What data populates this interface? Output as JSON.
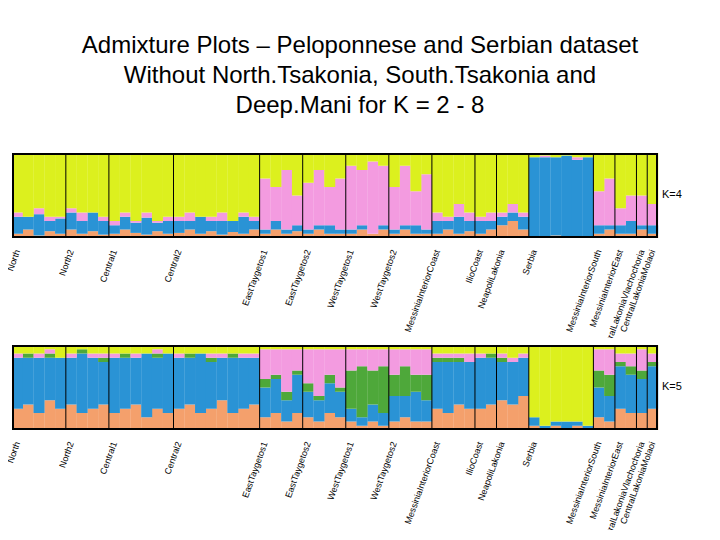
{
  "title": "Admixture Plots – Peloponnese and Serbian dataset\nWithout North.Tsakonia, South.Tsakonia and\nDeep.Mani for K = 2 - 8",
  "chart_data": [
    {
      "type": "bar",
      "stacked": true,
      "annotation": "K=4",
      "tick_labels": "x",
      "ylim": [
        0,
        1
      ],
      "categories": [
        "North",
        null,
        null,
        null,
        null,
        "North2",
        null,
        null,
        null,
        "Central1",
        null,
        null,
        null,
        null,
        null,
        "Central2",
        null,
        null,
        null,
        null,
        null,
        null,
        null,
        "EastTaygetos1",
        null,
        null,
        null,
        "EastTaygetos2",
        null,
        null,
        null,
        "WestTaygetos1",
        null,
        null,
        null,
        "WestTaygetos2",
        null,
        null,
        null,
        "MessiniaInteriorCoast",
        null,
        null,
        null,
        "IlioCoast",
        null,
        "NeapoliLakonia",
        null,
        null,
        "Serbia",
        null,
        null,
        null,
        null,
        null,
        "MessiniaInteriorSouth",
        null,
        "MessiniaInteriorEast",
        null,
        "CentralLakoniaVlachochoria",
        "CentralLakoniaMolaoi"
      ],
      "series": [
        {
          "color": "#f4a06c",
          "values": [
            0.05,
            0.1,
            0.03,
            0.08,
            0.05,
            0.1,
            0.05,
            0.08,
            0.04,
            0.05,
            0.1,
            0.06,
            0.04,
            0.08,
            0.05,
            0.06,
            0.1,
            0.05,
            0.08,
            0.04,
            0.07,
            0.05,
            0.1,
            0.05,
            0.1,
            0.05,
            0.08,
            0.05,
            0.1,
            0.05,
            0.05,
            0.05,
            0.1,
            0.05,
            0.1,
            0.05,
            0.1,
            0.05,
            0.05,
            0.05,
            0.1,
            0.05,
            0.08,
            0.05,
            0.1,
            0.15,
            0.2,
            0.1,
            0.02,
            0,
            0.03,
            0,
            0.02,
            0,
            0.05,
            0.1,
            0.05,
            0.05,
            0.1,
            0.05
          ]
        },
        {
          "color": "#2a93d5",
          "values": [
            0.2,
            0.15,
            0.25,
            0.12,
            0.18,
            0.2,
            0.15,
            0.22,
            0.16,
            0.1,
            0.15,
            0.12,
            0.2,
            0.1,
            0.15,
            0.14,
            0.1,
            0.2,
            0.12,
            0.16,
            0.13,
            0.2,
            0.1,
            0.05,
            0.1,
            0.05,
            0.07,
            0.05,
            0.05,
            0.1,
            0.05,
            0.05,
            0.05,
            0,
            0.05,
            0.05,
            0.05,
            0.1,
            0.05,
            0.15,
            0.1,
            0.2,
            0.12,
            0.15,
            0.1,
            0.1,
            0.1,
            0.15,
            0.93,
            0.95,
            0.92,
            0.97,
            0.9,
            0.95,
            0.1,
            0.05,
            0.1,
            0.15,
            0.05,
            0.1
          ]
        },
        {
          "color": "#f39be0",
          "values": [
            0.05,
            0,
            0.07,
            0.05,
            0.02,
            0.05,
            0.1,
            0,
            0.05,
            0.05,
            0.05,
            0.02,
            0.06,
            0.02,
            0.05,
            0.05,
            0.1,
            0,
            0.05,
            0.1,
            0,
            0.05,
            0.05,
            0.6,
            0.4,
            0.7,
            0.35,
            0.55,
            0.65,
            0.45,
            0.6,
            0.75,
            0.65,
            0.85,
            0.7,
            0.5,
            0.7,
            0.4,
            0.65,
            0.1,
            0.05,
            0.15,
            0.1,
            0.05,
            0.1,
            0.05,
            0.1,
            0.05,
            0,
            0.02,
            0,
            0,
            0.03,
            0,
            0.4,
            0.55,
            0.2,
            0.3,
            0.35,
            0.25
          ]
        },
        {
          "color": "#dcf01e",
          "values": [
            0.7,
            0.75,
            0.65,
            0.75,
            0.75,
            0.65,
            0.7,
            0.7,
            0.75,
            0.8,
            0.7,
            0.8,
            0.7,
            0.8,
            0.75,
            0.75,
            0.7,
            0.75,
            0.75,
            0.7,
            0.8,
            0.7,
            0.75,
            0.3,
            0.4,
            0.2,
            0.5,
            0.35,
            0.2,
            0.4,
            0.3,
            0.15,
            0.2,
            0.1,
            0.15,
            0.4,
            0.15,
            0.45,
            0.25,
            0.7,
            0.75,
            0.6,
            0.7,
            0.75,
            0.7,
            0.7,
            0.6,
            0.7,
            0.05,
            0.03,
            0.05,
            0.03,
            0.05,
            0.05,
            0.45,
            0.3,
            0.65,
            0.5,
            0.5,
            0.6
          ]
        }
      ]
    },
    {
      "type": "bar",
      "stacked": true,
      "annotation": "K=5",
      "tick_labels": "x",
      "ylim": [
        0,
        1
      ],
      "categories": [
        "North",
        null,
        null,
        null,
        null,
        "North2",
        null,
        null,
        null,
        "Central1",
        null,
        null,
        null,
        null,
        null,
        "Central2",
        null,
        null,
        null,
        null,
        null,
        null,
        null,
        "EastTaygetos1",
        null,
        null,
        null,
        "EastTaygetos2",
        null,
        null,
        null,
        "WestTaygetos1",
        null,
        null,
        null,
        "WestTaygetos2",
        null,
        null,
        null,
        "MessiniaInteriorCoast",
        null,
        null,
        null,
        "IlioCoast",
        null,
        "NeapoliLakonia",
        null,
        null,
        "Serbia",
        null,
        null,
        null,
        null,
        null,
        "MessiniaInteriorSouth",
        null,
        "MessiniaInteriorEast",
        null,
        "CentralLakoniaVlachochoria",
        "CentralLakoniaMolaoi"
      ],
      "series": [
        {
          "color": "#f4a06c",
          "values": [
            0.25,
            0.3,
            0.2,
            0.35,
            0.25,
            0.3,
            0.2,
            0.25,
            0.3,
            0.2,
            0.25,
            0.3,
            0.15,
            0.25,
            0.2,
            0.25,
            0.3,
            0.2,
            0.25,
            0.35,
            0.2,
            0.25,
            0.3,
            0.15,
            0.2,
            0.1,
            0.2,
            0.15,
            0.1,
            0.2,
            0.15,
            0.1,
            0.05,
            0.1,
            0.05,
            0.1,
            0.15,
            0.1,
            0.1,
            0.25,
            0.2,
            0.3,
            0.25,
            0.25,
            0.3,
            0.35,
            0.3,
            0.4,
            0.05,
            0,
            0.05,
            0,
            0.05,
            0,
            0.15,
            0.1,
            0.25,
            0.2,
            0.2,
            0.25
          ]
        },
        {
          "color": "#2a93d5",
          "values": [
            0.6,
            0.55,
            0.65,
            0.5,
            0.6,
            0.55,
            0.7,
            0.6,
            0.5,
            0.65,
            0.6,
            0.55,
            0.75,
            0.6,
            0.7,
            0.6,
            0.55,
            0.7,
            0.55,
            0.5,
            0.65,
            0.6,
            0.55,
            0.35,
            0.4,
            0.25,
            0.45,
            0.3,
            0.25,
            0.35,
            0.3,
            0.15,
            0.1,
            0.2,
            0.15,
            0.3,
            0.25,
            0.35,
            0.25,
            0.55,
            0.6,
            0.5,
            0.55,
            0.6,
            0.55,
            0.45,
            0.5,
            0.45,
            0.1,
            0.05,
            0.05,
            0.1,
            0.05,
            0.05,
            0.35,
            0.3,
            0.5,
            0.45,
            0.4,
            0.5
          ]
        },
        {
          "color": "#4ea83a",
          "values": [
            0,
            0.05,
            0,
            0.05,
            0,
            0,
            0.05,
            0,
            0.05,
            0,
            0.05,
            0,
            0,
            0.05,
            0,
            0,
            0.05,
            0,
            0.05,
            0,
            0.05,
            0,
            0,
            0.1,
            0.05,
            0.1,
            0.05,
            0.1,
            0.05,
            0.1,
            0.05,
            0.45,
            0.6,
            0.4,
            0.55,
            0.25,
            0.35,
            0.2,
            0.3,
            0.05,
            0.05,
            0.05,
            0,
            0,
            0.05,
            0.05,
            0,
            0,
            0,
            0,
            0,
            0,
            0,
            0,
            0.2,
            0.25,
            0.05,
            0.1,
            0.1,
            0.05
          ]
        },
        {
          "color": "#f39be0",
          "values": [
            0.05,
            0,
            0.05,
            0.05,
            0,
            0.05,
            0,
            0.05,
            0.05,
            0.05,
            0,
            0.05,
            0,
            0.05,
            0,
            0.05,
            0,
            0,
            0.05,
            0.05,
            0,
            0.05,
            0.05,
            0.35,
            0.3,
            0.5,
            0.25,
            0.4,
            0.55,
            0.3,
            0.45,
            0.25,
            0.2,
            0.25,
            0.2,
            0.3,
            0.2,
            0.3,
            0.3,
            0.05,
            0.05,
            0.05,
            0.1,
            0.05,
            0,
            0.05,
            0.05,
            0.05,
            0,
            0,
            0,
            0,
            0,
            0,
            0.25,
            0.3,
            0.1,
            0.15,
            0.25,
            0.1
          ]
        },
        {
          "color": "#dcf01e",
          "values": [
            0.1,
            0.1,
            0.1,
            0.05,
            0.15,
            0.1,
            0.05,
            0.1,
            0.1,
            0.1,
            0.1,
            0.1,
            0.1,
            0.05,
            0.1,
            0.1,
            0.1,
            0.1,
            0.1,
            0.1,
            0.1,
            0.1,
            0.1,
            0.05,
            0.05,
            0.05,
            0.05,
            0.05,
            0.05,
            0.05,
            0.05,
            0.05,
            0.05,
            0.05,
            0.05,
            0.05,
            0.05,
            0.05,
            0.05,
            0.1,
            0.1,
            0.1,
            0.1,
            0.1,
            0.1,
            0.1,
            0.15,
            0.1,
            0.85,
            0.95,
            0.9,
            0.9,
            0.9,
            0.95,
            0.05,
            0.05,
            0.1,
            0.1,
            0.05,
            0.1
          ]
        }
      ]
    }
  ]
}
